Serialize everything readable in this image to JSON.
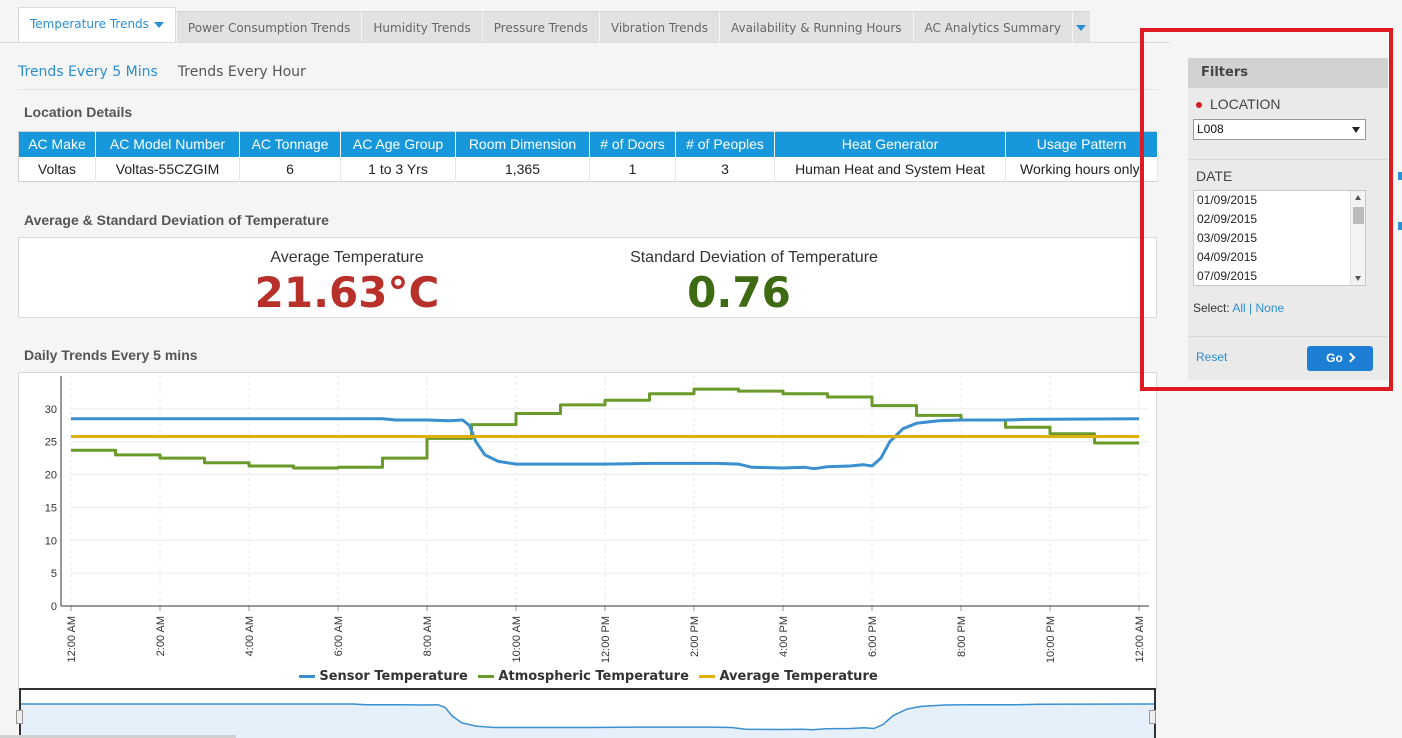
{
  "tabs": [
    {
      "label": "Temperature Trends",
      "active": true
    },
    {
      "label": "Power Consumption Trends"
    },
    {
      "label": "Humidity Trends"
    },
    {
      "label": "Pressure Trends"
    },
    {
      "label": "Vibration Trends"
    },
    {
      "label": "Availability & Running Hours"
    },
    {
      "label": "AC Analytics Summary"
    }
  ],
  "subtabs": {
    "five_min": "Trends Every 5 Mins",
    "hour": "Trends Every Hour"
  },
  "location": {
    "title": "Location Details",
    "headers": [
      "AC Make",
      "AC Model Number",
      "AC Tonnage",
      "AC Age Group",
      "Room Dimension",
      "# of Doors",
      "# of Peoples",
      "Heat Generator",
      "Usage Pattern"
    ],
    "row": [
      "Voltas",
      "Voltas-55CZGIM",
      "6",
      "1 to 3 Yrs",
      "1,365",
      "1",
      "3",
      "Human Heat and System Heat",
      "Working hours only"
    ]
  },
  "stats": {
    "title": "Average & Standard Deviation of Temperature",
    "avg_label": "Average Temperature",
    "avg_value": "21.63°C",
    "std_label": "Standard Deviation of Temperature",
    "std_value": "0.76",
    "avg_color": "#b8302a",
    "std_color": "#3d6a12"
  },
  "chart": {
    "title": "Daily Trends Every 5 mins"
  },
  "chart_data": {
    "type": "line",
    "x_ticks": [
      "12:00 AM",
      "2:00 AM",
      "4:00 AM",
      "6:00 AM",
      "8:00 AM",
      "10:00 AM",
      "12:00 PM",
      "2:00 PM",
      "4:00 PM",
      "6:00 PM",
      "8:00 PM",
      "10:00 PM",
      "12:00 AM"
    ],
    "y_ticks": [
      0,
      5,
      10,
      15,
      20,
      25,
      30
    ],
    "ylim": [
      0,
      35
    ],
    "xlim_hours": [
      0,
      24
    ],
    "grid": true,
    "legend_position": "bottom",
    "series": [
      {
        "name": "Sensor Temperature",
        "color": "#3a8fd0",
        "points": [
          [
            0,
            28.5
          ],
          [
            7,
            28.5
          ],
          [
            7.3,
            28.3
          ],
          [
            8,
            28.3
          ],
          [
            8.5,
            28.2
          ],
          [
            8.8,
            28.3
          ],
          [
            8.95,
            27.5
          ],
          [
            9.1,
            25
          ],
          [
            9.3,
            23
          ],
          [
            9.6,
            22
          ],
          [
            10,
            21.6
          ],
          [
            12,
            21.6
          ],
          [
            13,
            21.7
          ],
          [
            14.5,
            21.7
          ],
          [
            15,
            21.6
          ],
          [
            15.3,
            21.1
          ],
          [
            16,
            21
          ],
          [
            16.5,
            21.1
          ],
          [
            16.7,
            20.9
          ],
          [
            17,
            21.2
          ],
          [
            17.5,
            21.3
          ],
          [
            17.8,
            21.5
          ],
          [
            18,
            21.3
          ],
          [
            18.2,
            22.5
          ],
          [
            18.4,
            25
          ],
          [
            18.7,
            27
          ],
          [
            19,
            27.8
          ],
          [
            19.5,
            28.2
          ],
          [
            20,
            28.3
          ],
          [
            21,
            28.3
          ],
          [
            21.5,
            28.4
          ],
          [
            24,
            28.5
          ]
        ]
      },
      {
        "name": "Atmospheric Temperature",
        "color": "#6a9a2a",
        "points": [
          [
            0,
            23.7
          ],
          [
            1,
            23.7
          ],
          [
            1,
            23
          ],
          [
            2,
            23
          ],
          [
            2,
            22.5
          ],
          [
            3,
            22.5
          ],
          [
            3,
            21.8
          ],
          [
            4,
            21.8
          ],
          [
            4,
            21.3
          ],
          [
            5,
            21.3
          ],
          [
            5,
            21
          ],
          [
            6,
            21
          ],
          [
            6,
            21.1
          ],
          [
            7,
            21.1
          ],
          [
            7,
            22.5
          ],
          [
            8,
            22.5
          ],
          [
            8,
            25.5
          ],
          [
            9,
            25.5
          ],
          [
            9,
            27.6
          ],
          [
            10,
            27.6
          ],
          [
            10,
            29.3
          ],
          [
            11,
            29.3
          ],
          [
            11,
            30.6
          ],
          [
            12,
            30.6
          ],
          [
            12,
            31.3
          ],
          [
            13,
            31.3
          ],
          [
            13,
            32.3
          ],
          [
            14,
            32.3
          ],
          [
            14,
            33
          ],
          [
            15,
            33
          ],
          [
            15,
            32.7
          ],
          [
            16,
            32.7
          ],
          [
            16,
            32.3
          ],
          [
            17,
            32.3
          ],
          [
            17,
            31.8
          ],
          [
            18,
            31.8
          ],
          [
            18,
            30.5
          ],
          [
            19,
            30.5
          ],
          [
            19,
            29
          ],
          [
            20,
            29
          ],
          [
            20,
            28.3
          ],
          [
            21,
            28.3
          ],
          [
            21,
            27.2
          ],
          [
            22,
            27.2
          ],
          [
            22,
            26.2
          ],
          [
            23,
            26.2
          ],
          [
            23,
            24.8
          ],
          [
            24,
            24.8
          ]
        ]
      },
      {
        "name": "Average Temperature",
        "color": "#e0b10e",
        "points": [
          [
            0,
            25.8
          ],
          [
            24,
            25.8
          ]
        ]
      }
    ]
  },
  "filters": {
    "title": "Filters",
    "location_label": "LOCATION",
    "location_value": "L008",
    "date_label": "DATE",
    "dates": [
      "01/09/2015",
      "02/09/2015",
      "03/09/2015",
      "04/09/2015",
      "07/09/2015"
    ],
    "select_label": "Select:",
    "all": "All",
    "divider": "|",
    "none": "None",
    "reset": "Reset",
    "go": "Go"
  }
}
